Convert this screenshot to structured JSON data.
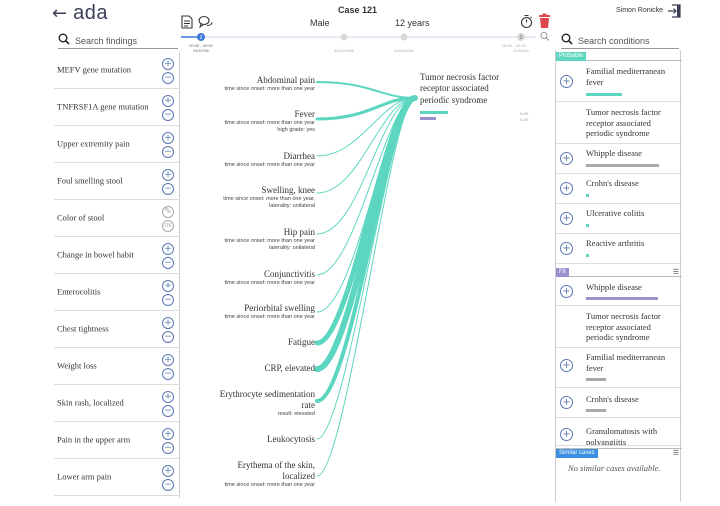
{
  "header": {
    "back_icon": "arrow-left-icon",
    "logo": "ada",
    "case_title": "Case 121",
    "sex": "Male",
    "age": "12 years",
    "user": "Simon Ronicke",
    "icons": [
      "document-icon",
      "chat-bubbles-icon",
      "stopwatch-icon",
      "trash-icon",
      "logout-icon"
    ],
    "trash_color": "#e0474c",
    "accent": "#5cd6c0"
  },
  "left_search": {
    "placeholder": "Search findings",
    "icon": "search-icon"
  },
  "right_search": {
    "placeholder": "Search conditions",
    "icon": "search-icon"
  },
  "timeline": {
    "points": [
      {
        "time": "00:00 - 00:00",
        "date": "01/07/06",
        "badge": "2",
        "active": true
      },
      {
        "time": "",
        "date": "01/01/1998",
        "badge": "",
        "active": false
      },
      {
        "time": "",
        "date": "01/01/2004",
        "badge": "",
        "active": false
      },
      {
        "time": "00:00 - 00:00",
        "date": "01/01/15",
        "badge": "2",
        "active": false
      }
    ],
    "zoom_icon": "magnifier-icon"
  },
  "findings": [
    {
      "label": "MEFV gene mutation",
      "buttons": [
        "plus",
        "minus"
      ]
    },
    {
      "label": "TNFRSF1A gene mutation",
      "buttons": [
        "plus",
        "minus"
      ]
    },
    {
      "label": "Upper extremity pain",
      "buttons": [
        "plus",
        "minus"
      ]
    },
    {
      "label": "Foul smelling stool",
      "buttons": [
        "plus",
        "minus"
      ]
    },
    {
      "label": "Color of stool",
      "buttons": [
        "edit",
        "ok"
      ]
    },
    {
      "label": "Change in bowel habit",
      "buttons": [
        "plus",
        "minus"
      ]
    },
    {
      "label": "Enterocolitis",
      "buttons": [
        "plus",
        "minus"
      ]
    },
    {
      "label": "Chest tightness",
      "buttons": [
        "plus",
        "minus"
      ]
    },
    {
      "label": "Weight loss",
      "buttons": [
        "plus",
        "minus"
      ]
    },
    {
      "label": "Skin rash, localized",
      "buttons": [
        "plus",
        "minus"
      ]
    },
    {
      "label": "Pain in the upper arm",
      "buttons": [
        "plus",
        "minus"
      ]
    },
    {
      "label": "Lower arm pain",
      "buttons": [
        "plus",
        "minus"
      ]
    }
  ],
  "symptoms": [
    {
      "name": "Abdominal pain",
      "details": [
        "time since onset: more than one year"
      ]
    },
    {
      "name": "Fever",
      "details": [
        "time since onset: more than one year",
        "high grade: yes"
      ]
    },
    {
      "name": "Diarrhea",
      "details": [
        "time since onset: more than one year"
      ]
    },
    {
      "name": "Swelling, knee",
      "details": [
        "time since onset: more than one year,",
        "laterality: unilateral"
      ]
    },
    {
      "name": "Hip pain",
      "details": [
        "time since onset: more than one year",
        "laterality: unilateral"
      ]
    },
    {
      "name": "Conjunctivitis",
      "details": [
        "time since onset: more than one year"
      ]
    },
    {
      "name": "Periorbital swelling",
      "details": [
        "time since onset: more than one year"
      ]
    },
    {
      "name": "Fatigue",
      "details": []
    },
    {
      "name": "CRP, elevated",
      "details": []
    },
    {
      "name": "Erythrocyte sedimentation rate",
      "details": [
        "result: elevated"
      ]
    },
    {
      "name": "Leukocytosis",
      "details": []
    },
    {
      "name": "Erythema of the skin, localized",
      "details": [
        "time since onset: more than one year"
      ]
    }
  ],
  "center_condition": {
    "name": "Tumor necrosis factor receptor associated periodic syndrome",
    "values": [
      "0.0H",
      "0.0E"
    ],
    "bar_colors": [
      "#5cd6c0",
      "#9c8fce"
    ]
  },
  "probable": {
    "label": "Probable",
    "tag_color": "#5cd6c0",
    "items": [
      {
        "name": "Familial mediterranean fever",
        "add": true,
        "bar": 0.45,
        "bar_color": "#5cd6c0"
      },
      {
        "name": "Tumor necrosis factor receptor associated periodic syndrome",
        "add": false,
        "bar": 0,
        "bar_color": "#5cd6c0"
      },
      {
        "name": "Whipple disease",
        "add": true,
        "bar": 0.95,
        "bar_color": "#aaaaaa"
      },
      {
        "name": "Crohn's disease",
        "add": true,
        "bar": 0.05,
        "bar_color": "#5cd6c0"
      },
      {
        "name": "Ulcerative colitis",
        "add": true,
        "bar": 0.05,
        "bar_color": "#5cd6c0"
      },
      {
        "name": "Reactive arthritis",
        "add": true,
        "bar": 0.05,
        "bar_color": "#5cd6c0"
      }
    ]
  },
  "fit": {
    "label": "Fit",
    "tag_color": "#9c8fce",
    "menu_icon": "hamburger-menu-icon",
    "items": [
      {
        "name": "Whipple disease",
        "add": true,
        "bar": 0.95,
        "bar_color": "#9c8fce"
      },
      {
        "name": "Tumor necrosis factor receptor associated periodic syndrome",
        "add": false,
        "bar": 0,
        "bar_color": "#9c8fce"
      },
      {
        "name": "Familial mediterranean fever",
        "add": true,
        "bar": 0.25,
        "bar_color": "#aaaaaa"
      },
      {
        "name": "Crohn's disease",
        "add": true,
        "bar": 0.25,
        "bar_color": "#aaaaaa"
      },
      {
        "name": "Granulomatosis with polyangiitis",
        "add": true,
        "bar": 0,
        "bar_color": "#aaaaaa"
      }
    ]
  },
  "similar": {
    "label": "Similar cases",
    "tag_color": "#3b8fe0",
    "menu_icon": "hamburger-menu-icon",
    "empty": "No similar cases available."
  }
}
